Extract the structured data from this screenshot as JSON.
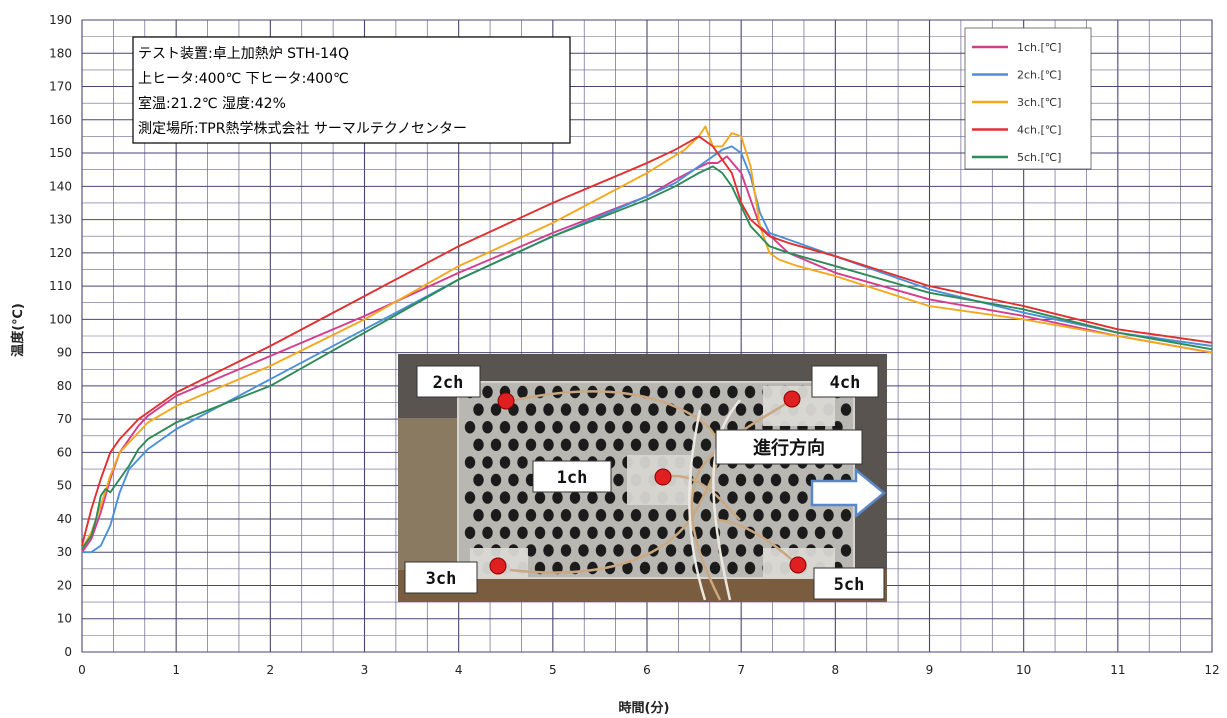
{
  "chart_data": {
    "type": "line",
    "title": "",
    "xlabel": "時間(分)",
    "ylabel": "温度(℃)",
    "xlim": [
      0,
      12
    ],
    "ylim": [
      0,
      190
    ],
    "x_ticks": [
      0,
      1,
      2,
      3,
      4,
      5,
      6,
      7,
      8,
      9,
      10,
      11,
      12
    ],
    "y_ticks": [
      0,
      10,
      20,
      30,
      40,
      50,
      60,
      70,
      80,
      90,
      100,
      110,
      120,
      130,
      140,
      150,
      160,
      170,
      180,
      190
    ],
    "grid": true,
    "legend_position": "top-right",
    "series": [
      {
        "name": "1ch.[℃]",
        "color": "#d63c8c",
        "x": [
          0,
          0.1,
          0.2,
          0.3,
          0.4,
          0.5,
          0.6,
          0.7,
          1,
          2,
          3,
          4,
          5,
          6,
          6.3,
          6.5,
          6.65,
          6.75,
          6.85,
          7,
          7.2,
          7.5,
          8,
          9,
          10,
          11,
          12
        ],
        "y": [
          30,
          34,
          42,
          52,
          60,
          64,
          68,
          71,
          77,
          89,
          101,
          114,
          126,
          137,
          142,
          145,
          147,
          147,
          149,
          144,
          128,
          120,
          114,
          106,
          101,
          95,
          90
        ]
      },
      {
        "name": "2ch.[℃]",
        "color": "#4a90d9",
        "x": [
          0,
          0.1,
          0.2,
          0.3,
          0.4,
          0.5,
          0.6,
          0.7,
          1,
          2,
          3,
          4,
          5,
          6,
          6.3,
          6.5,
          6.7,
          6.8,
          6.9,
          7.0,
          7.1,
          7.2,
          7.3,
          7.5,
          8,
          9,
          10,
          11,
          12
        ],
        "y": [
          30,
          30,
          32,
          38,
          48,
          55,
          58,
          61,
          67,
          82,
          97,
          112,
          125,
          137,
          141,
          145,
          149,
          151,
          152,
          150,
          143,
          132,
          126,
          124,
          119,
          109,
          102,
          96,
          92
        ]
      },
      {
        "name": "3ch.[℃]",
        "color": "#f5a81c",
        "x": [
          0,
          0.1,
          0.2,
          0.3,
          0.4,
          0.5,
          0.6,
          0.7,
          1,
          2,
          3,
          4,
          5,
          6,
          6.4,
          6.55,
          6.62,
          6.7,
          6.8,
          6.9,
          7.0,
          7.1,
          7.2,
          7.3,
          7.4,
          7.6,
          8,
          9,
          10,
          11,
          12
        ],
        "y": [
          31,
          36,
          44,
          53,
          60,
          63,
          66,
          69,
          74,
          86,
          100,
          116,
          129,
          144,
          151,
          155,
          158,
          152,
          152,
          156,
          155,
          146,
          128,
          120,
          118,
          116,
          113,
          104,
          100,
          95,
          90
        ]
      },
      {
        "name": "4ch.[℃]",
        "color": "#e03030",
        "x": [
          0,
          0.1,
          0.2,
          0.3,
          0.4,
          0.5,
          0.6,
          0.7,
          1,
          2,
          3,
          4,
          5,
          6,
          6.3,
          6.55,
          6.7,
          6.8,
          6.9,
          7.0,
          7.1,
          7.3,
          7.5,
          8,
          9,
          10,
          11,
          12
        ],
        "y": [
          32,
          43,
          52,
          60,
          64,
          67,
          70,
          72,
          78,
          92,
          107,
          122,
          135,
          147,
          151,
          155,
          152,
          148,
          144,
          135,
          130,
          125,
          123,
          119,
          110,
          104,
          97,
          93
        ]
      },
      {
        "name": "5ch.[℃]",
        "color": "#2e8b57",
        "x": [
          0,
          0.1,
          0.15,
          0.2,
          0.25,
          0.3,
          0.4,
          0.5,
          0.6,
          0.7,
          1,
          2,
          3,
          4,
          5,
          6,
          6.3,
          6.55,
          6.7,
          6.8,
          6.9,
          7.0,
          7.1,
          7.3,
          7.5,
          8,
          9,
          10,
          11,
          12
        ],
        "y": [
          31,
          35,
          40,
          47,
          49,
          48,
          52,
          56,
          61,
          64,
          69,
          80,
          96,
          112,
          125,
          136,
          140,
          144,
          146,
          144,
          140,
          134,
          128,
          122,
          120,
          116,
          108,
          103,
          96,
          91
        ]
      }
    ]
  },
  "info_box": {
    "line1": "テスト装置:卓上加熱炉 STH-14Q",
    "line2": "上ヒータ:400℃ 下ヒータ:400℃",
    "line3": "室温:21.2℃ 湿度:42%",
    "line4": "測定場所:TPR熱学株式会社 サーマルテクノセンター"
  },
  "photo": {
    "labels": {
      "ch1": "1ch",
      "ch2": "2ch",
      "ch3": "3ch",
      "ch4": "4ch",
      "ch5": "5ch",
      "direction": "進行方向"
    },
    "colors": {
      "background": "#5a5450",
      "plate": "#b9b7b2",
      "hole": "#1b1b1b",
      "marker": "#e02020"
    }
  }
}
